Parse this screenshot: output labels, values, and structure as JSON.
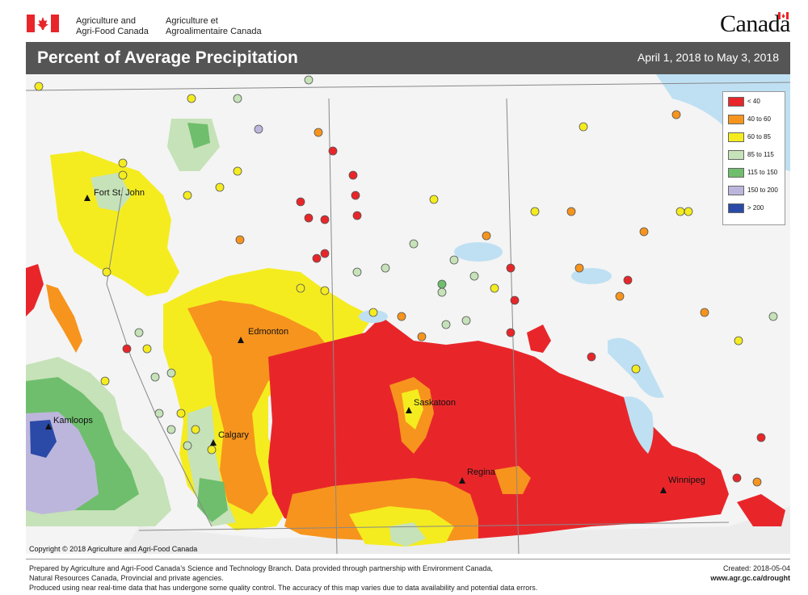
{
  "header": {
    "dept_en_line1": "Agriculture and",
    "dept_en_line2": "Agri-Food Canada",
    "dept_fr_line1": "Agriculture et",
    "dept_fr_line2": "Agroalimentaire Canada",
    "wordmark": "Canada"
  },
  "title": "Percent of Average Precipitation",
  "date_range": "April 1, 2018 to May 3, 2018",
  "legend": [
    {
      "label": "< 40",
      "color": "#e8262a"
    },
    {
      "label": "40 to 60",
      "color": "#f7941d"
    },
    {
      "label": "60 to 85",
      "color": "#f4ec1f"
    },
    {
      "label": "85 to 115",
      "color": "#c6e2b8"
    },
    {
      "label": "115 to 150",
      "color": "#6fbe6d"
    },
    {
      "label": "150 to 200",
      "color": "#bdb6dc"
    },
    {
      "label": "> 200",
      "color": "#2b4aa8"
    }
  ],
  "cities": {
    "fort_st_john": "Fort St. John",
    "edmonton": "Edmonton",
    "calgary": "Calgary",
    "kamloops": "Kamloops",
    "saskatoon": "Saskatoon",
    "regina": "Regina",
    "winnipeg": "Winnipeg"
  },
  "copyright": "Copyright © 2018 Agriculture and Agri-Food Canada",
  "footer": {
    "line1": "Prepared by Agriculture and Agri-Food Canada’s Science and Technology Branch. Data provided through partnership with Environment Canada,",
    "line2": "Natural Resources Canada, Provincial and private agencies.",
    "line3": "Produced using near real-time data that has undergone some quality control. The accuracy of this map varies due to data availability and potential data errors.",
    "created": "Created: 2018-05-04",
    "url": "www.agr.gc.ca/drought"
  }
}
